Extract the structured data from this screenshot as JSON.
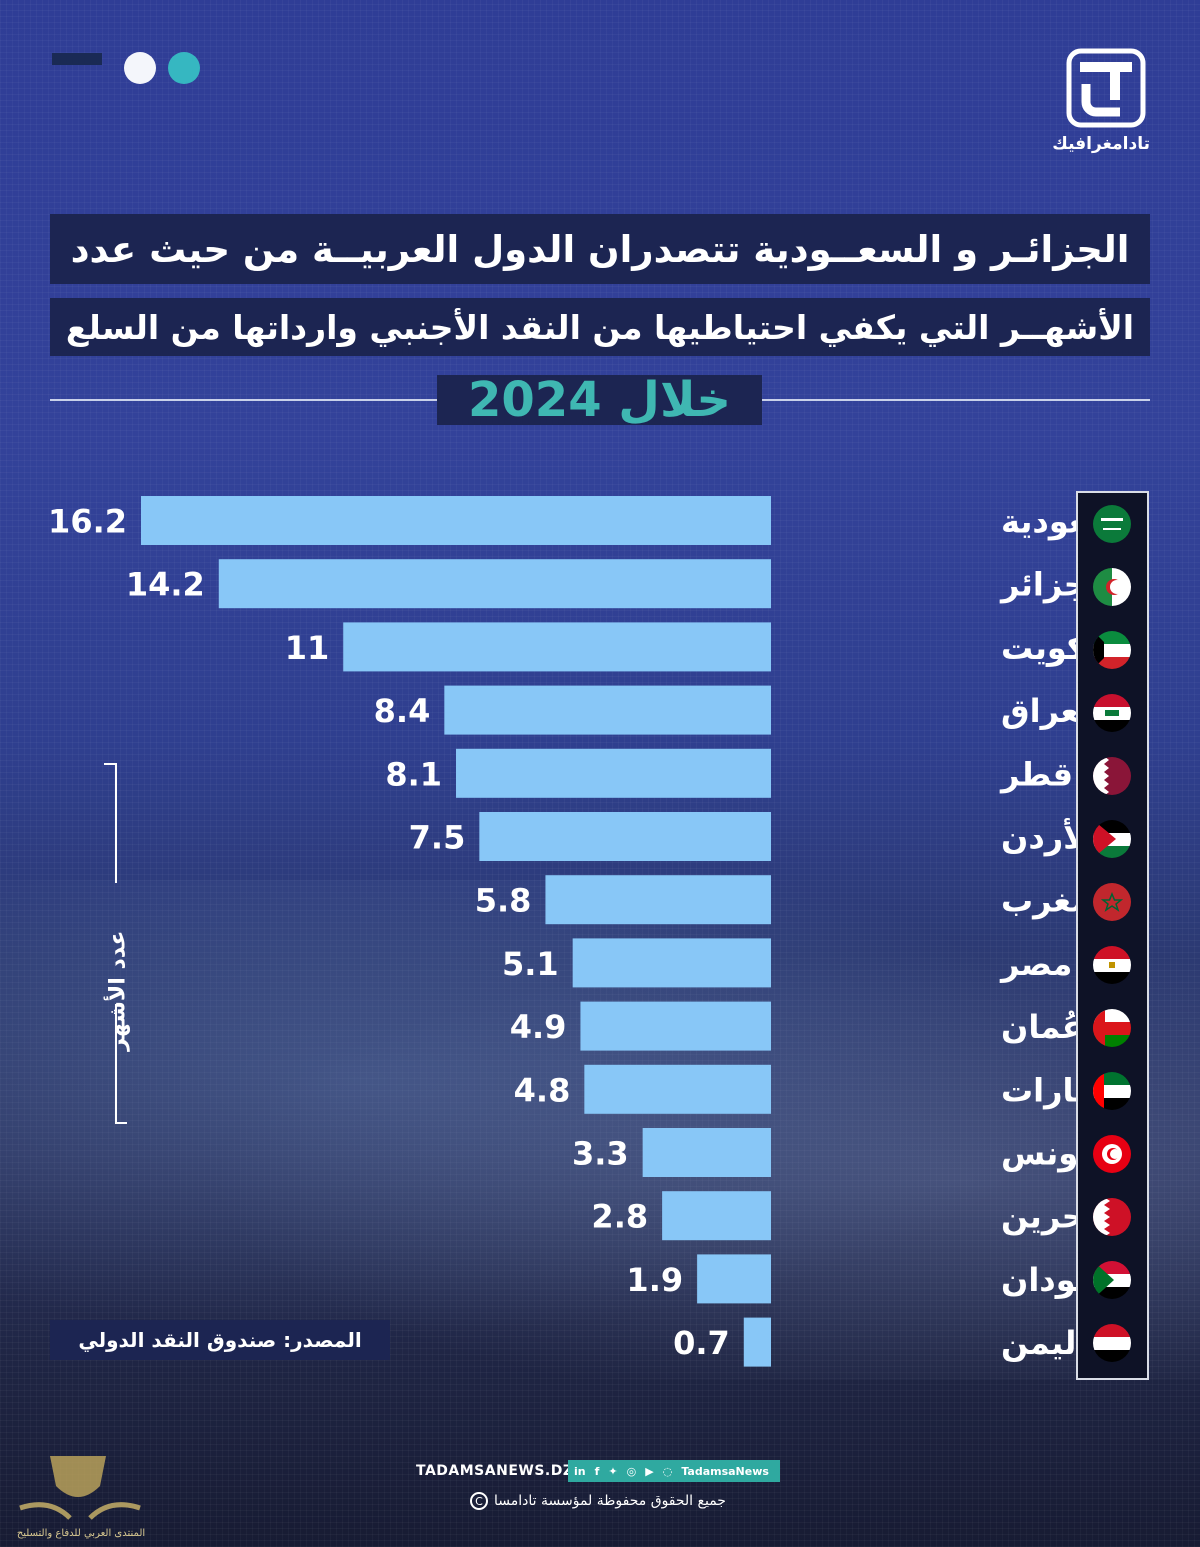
{
  "brand": {
    "name": "تادامغرافيك"
  },
  "title": {
    "line1": "الجزائـر و السعــودية  تتصدران الدول العربيــة من حيث عدد",
    "line2": "الأشهــر  التي يكفي احتياطيها من النقد الأجنبي وارداتها من السلع",
    "year": "خلال 2024"
  },
  "axis_label": "عدد الأشهر",
  "source": "المصدر: صندوق النقد الدولي",
  "footer": {
    "site": "TADAMSANEWS.DZ",
    "social_handle": "TadamsaNews",
    "copyright": "جميع الحقوق محفوظة لمؤسسة تادامسا"
  },
  "watermark": "المنتدى العربي للدفاع والتسليح",
  "colors": {
    "bar": "#88c7f7",
    "title_box": "#1c2552",
    "year_text": "#3fb7b2",
    "accent": "#36b7c1"
  },
  "flags": [
    "saudi-flag-icon",
    "algeria-flag-icon",
    "kuwait-flag-icon",
    "iraq-flag-icon",
    "qatar-flag-icon",
    "jordan-flag-icon",
    "morocco-flag-icon",
    "egypt-flag-icon",
    "oman-flag-icon",
    "uae-flag-icon",
    "tunisia-flag-icon",
    "bahrain-flag-icon",
    "sudan-flag-icon",
    "yemen-flag-icon"
  ],
  "chart_data": {
    "type": "bar",
    "orientation": "horizontal",
    "categories": [
      "السعودية",
      "الجزائر",
      "الكويت",
      "العراق",
      "قطر",
      "الأردن",
      "المغرب",
      "مصر",
      "عُمان",
      "الإمارات",
      "تونس",
      "البحرين",
      "السودان",
      "اليمن"
    ],
    "values": [
      16.2,
      14.2,
      11,
      8.4,
      8.1,
      7.5,
      5.8,
      5.1,
      4.9,
      4.8,
      3.3,
      2.8,
      1.9,
      0.7
    ],
    "value_labels": [
      "16.2",
      "14.2",
      "11",
      "8.4",
      "8.1",
      "7.5",
      "5.8",
      "5.1",
      "4.9",
      "4.8",
      "3.3",
      "2.8",
      "1.9",
      "0.7"
    ],
    "title": "",
    "xlabel": "",
    "ylabel": "عدد الأشهر",
    "xlim": [
      0,
      16.2
    ],
    "grid": false
  }
}
